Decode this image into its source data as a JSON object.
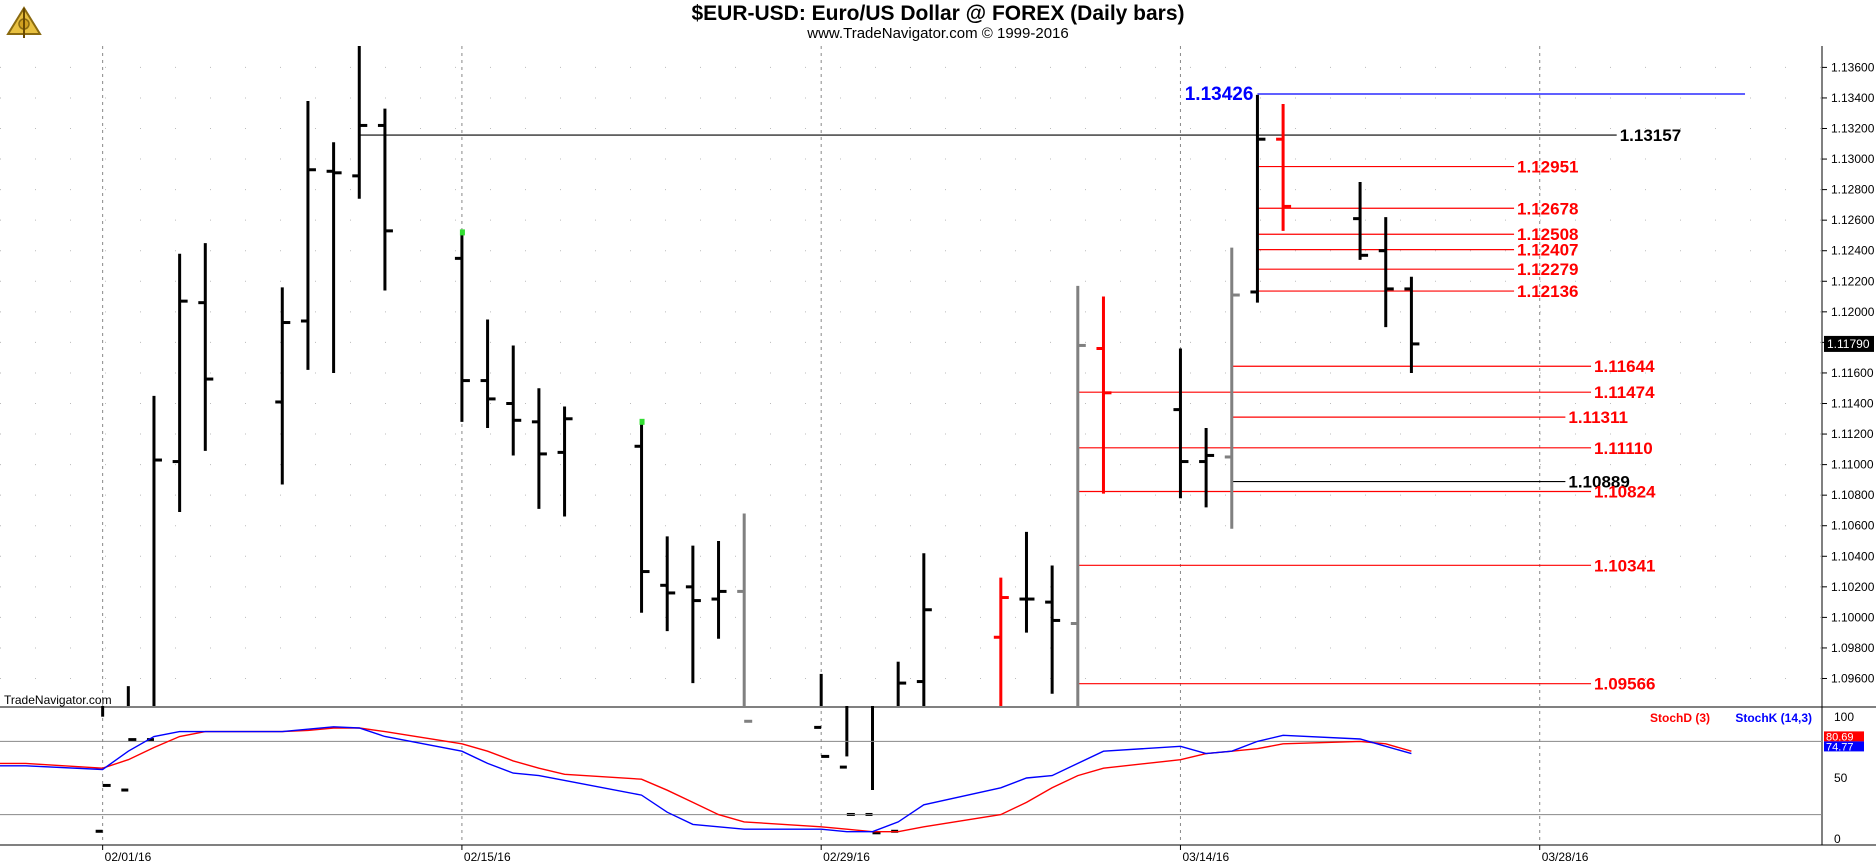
{
  "header": {
    "title": "$EUR-USD:  Euro/US Dollar @ FOREX  (Daily bars)",
    "subtitle": "www.TradeNavigator.com © 1999-2016"
  },
  "watermark": "TradeNavigator.com",
  "colors": {
    "bar_black": "#000000",
    "bar_red": "#ff0000",
    "bar_gray": "#808080",
    "bar_green_tick": "#33dd33",
    "level_red": "#ff0000",
    "level_blue": "#0000ff",
    "level_black": "#000000",
    "stoch_d": "#ff0000",
    "stoch_k": "#0000ff",
    "grid": "#888888"
  },
  "chart_data": [
    {
      "type": "ohlc",
      "y_axis": {
        "range": [
          1.0942,
          1.1374
        ],
        "ticks": [
          "1.09600",
          "1.09800",
          "1.10000",
          "1.10200",
          "1.10400",
          "1.10600",
          "1.10800",
          "1.11000",
          "1.11200",
          "1.11400",
          "1.11600",
          "1.11800",
          "1.12000",
          "1.12200",
          "1.12400",
          "1.12600",
          "1.12800",
          "1.13000",
          "1.13200",
          "1.13400",
          "1.13600"
        ],
        "current_price": "1.11790",
        "position": "right"
      },
      "x_axis": {
        "ticks": [
          "02/01/16",
          "02/15/16",
          "02/29/16",
          "03/14/16",
          "03/28/16"
        ],
        "range_days": [
          "2016-01-28",
          "2016-04-08"
        ]
      },
      "grid": true,
      "bars": [
        {
          "date": "2016-02-01",
          "open": 1.086,
          "high": 1.0935,
          "low": 1.083,
          "close": 1.089,
          "color": "black"
        },
        {
          "date": "2016-02-02",
          "open": 1.0887,
          "high": 1.0955,
          "low": 1.085,
          "close": 1.092,
          "color": "black"
        },
        {
          "date": "2016-02-03",
          "open": 1.092,
          "high": 1.1145,
          "low": 1.088,
          "close": 1.1103,
          "color": "black"
        },
        {
          "date": "2016-02-04",
          "open": 1.1102,
          "high": 1.1238,
          "low": 1.1069,
          "close": 1.1207,
          "color": "black"
        },
        {
          "date": "2016-02-05",
          "open": 1.1206,
          "high": 1.1245,
          "low": 1.1109,
          "close": 1.1156,
          "color": "black"
        },
        {
          "date": "2016-02-08",
          "open": 1.1141,
          "high": 1.1216,
          "low": 1.1087,
          "close": 1.1193,
          "color": "black"
        },
        {
          "date": "2016-02-09",
          "open": 1.1194,
          "high": 1.1338,
          "low": 1.1162,
          "close": 1.1293,
          "color": "black"
        },
        {
          "date": "2016-02-10",
          "open": 1.1292,
          "high": 1.1311,
          "low": 1.116,
          "close": 1.1291,
          "color": "black"
        },
        {
          "date": "2016-02-11",
          "open": 1.1289,
          "high": 1.1376,
          "low": 1.1274,
          "close": 1.1322,
          "color": "black"
        },
        {
          "date": "2016-02-12",
          "open": 1.1322,
          "high": 1.1333,
          "low": 1.1214,
          "close": 1.1253,
          "color": "black"
        },
        {
          "date": "2016-02-15",
          "open": 1.1235,
          "high": 1.1252,
          "low": 1.1128,
          "close": 1.1155,
          "color": "black",
          "mark": "green"
        },
        {
          "date": "2016-02-16",
          "open": 1.1155,
          "high": 1.1195,
          "low": 1.1124,
          "close": 1.1143,
          "color": "black"
        },
        {
          "date": "2016-02-17",
          "open": 1.114,
          "high": 1.1178,
          "low": 1.1106,
          "close": 1.1129,
          "color": "black"
        },
        {
          "date": "2016-02-18",
          "open": 1.1128,
          "high": 1.115,
          "low": 1.1071,
          "close": 1.1107,
          "color": "black"
        },
        {
          "date": "2016-02-19",
          "open": 1.1108,
          "high": 1.1138,
          "low": 1.1066,
          "close": 1.113,
          "color": "black"
        },
        {
          "date": "2016-02-22",
          "open": 1.1112,
          "high": 1.1128,
          "low": 1.1003,
          "close": 1.103,
          "color": "black",
          "mark": "green"
        },
        {
          "date": "2016-02-23",
          "open": 1.1021,
          "high": 1.1053,
          "low": 1.0991,
          "close": 1.1016,
          "color": "black"
        },
        {
          "date": "2016-02-24",
          "open": 1.102,
          "high": 1.1047,
          "low": 1.0957,
          "close": 1.1011,
          "color": "black"
        },
        {
          "date": "2016-02-25",
          "open": 1.1012,
          "high": 1.105,
          "low": 1.0986,
          "close": 1.1017,
          "color": "black"
        },
        {
          "date": "2016-02-26",
          "open": 1.1017,
          "high": 1.1068,
          "low": 1.091,
          "close": 1.0932,
          "color": "gray"
        },
        {
          "date": "2016-02-29",
          "open": 1.0928,
          "high": 1.0963,
          "low": 1.0895,
          "close": 1.0909,
          "color": "black"
        },
        {
          "date": "2016-03-01",
          "open": 1.0902,
          "high": 1.0909,
          "low": 1.0839,
          "close": 1.0871,
          "color": "black"
        },
        {
          "date": "2016-03-02",
          "open": 1.0871,
          "high": 1.0887,
          "low": 1.0823,
          "close": 1.0859,
          "color": "black"
        },
        {
          "date": "2016-03-03",
          "open": 1.086,
          "high": 1.0971,
          "low": 1.0849,
          "close": 1.0957,
          "color": "black"
        },
        {
          "date": "2016-03-04",
          "open": 1.0958,
          "high": 1.1042,
          "low": 1.092,
          "close": 1.1005,
          "color": "black"
        },
        {
          "date": "2016-03-07",
          "open": 1.0987,
          "high": 1.1026,
          "low": 1.094,
          "close": 1.1013,
          "color": "red"
        },
        {
          "date": "2016-03-08",
          "open": 1.1012,
          "high": 1.1056,
          "low": 1.099,
          "close": 1.1012,
          "color": "black"
        },
        {
          "date": "2016-03-09",
          "open": 1.101,
          "high": 1.1034,
          "low": 1.095,
          "close": 1.0998,
          "color": "black"
        },
        {
          "date": "2016-03-10",
          "open": 1.0996,
          "high": 1.1217,
          "low": 1.0933,
          "close": 1.1178,
          "color": "gray"
        },
        {
          "date": "2016-03-11",
          "open": 1.1176,
          "high": 1.121,
          "low": 1.1081,
          "close": 1.1147,
          "color": "red"
        },
        {
          "date": "2016-03-14",
          "open": 1.1136,
          "high": 1.1176,
          "low": 1.1078,
          "close": 1.1102,
          "color": "black"
        },
        {
          "date": "2016-03-15",
          "open": 1.1102,
          "high": 1.1124,
          "low": 1.1072,
          "close": 1.1106,
          "color": "black"
        },
        {
          "date": "2016-03-16",
          "open": 1.1105,
          "high": 1.1242,
          "low": 1.1058,
          "close": 1.1211,
          "color": "gray"
        },
        {
          "date": "2016-03-17",
          "open": 1.1213,
          "high": 1.1342,
          "low": 1.1206,
          "close": 1.1313,
          "color": "black"
        },
        {
          "date": "2016-03-18",
          "open": 1.1313,
          "high": 1.1336,
          "low": 1.1253,
          "close": 1.1269,
          "color": "red"
        },
        {
          "date": "2016-03-21",
          "open": 1.1261,
          "high": 1.1285,
          "low": 1.1234,
          "close": 1.1237,
          "color": "black"
        },
        {
          "date": "2016-03-22",
          "open": 1.124,
          "high": 1.1262,
          "low": 1.119,
          "close": 1.1215,
          "color": "black"
        },
        {
          "date": "2016-03-23",
          "open": 1.1215,
          "high": 1.1223,
          "low": 1.116,
          "close": 1.1179,
          "color": "black"
        }
      ],
      "levels": [
        {
          "value": 1.13426,
          "label": "1.13426",
          "color": "blue",
          "from": "2016-03-17",
          "to": "2016-04-05",
          "label_side": "left"
        },
        {
          "value": 1.13157,
          "label": "1.13157",
          "color": "black",
          "from": "2016-02-11",
          "to": "2016-03-31",
          "label_side": "right"
        },
        {
          "value": 1.12951,
          "label": "1.12951",
          "color": "red",
          "from": "2016-03-17",
          "to": "2016-03-27",
          "label_side": "right"
        },
        {
          "value": 1.12678,
          "label": "1.12678",
          "color": "red",
          "from": "2016-03-17",
          "to": "2016-03-27",
          "label_side": "right"
        },
        {
          "value": 1.12508,
          "label": "1.12508",
          "color": "red",
          "from": "2016-03-17",
          "to": "2016-03-27",
          "label_side": "right"
        },
        {
          "value": 1.12407,
          "label": "1.12407",
          "color": "red",
          "from": "2016-03-17",
          "to": "2016-03-27",
          "label_side": "right"
        },
        {
          "value": 1.12279,
          "label": "1.12279",
          "color": "red",
          "from": "2016-03-17",
          "to": "2016-03-27",
          "label_side": "right"
        },
        {
          "value": 1.12136,
          "label": "1.12136",
          "color": "red",
          "from": "2016-03-17",
          "to": "2016-03-27",
          "label_side": "right"
        },
        {
          "value": 1.11644,
          "label": "1.11644",
          "color": "red",
          "from": "2016-03-16",
          "to": "2016-03-30",
          "label_side": "right"
        },
        {
          "value": 1.11474,
          "label": "1.11474",
          "color": "red",
          "from": "2016-03-10",
          "to": "2016-03-30",
          "label_side": "right"
        },
        {
          "value": 1.11311,
          "label": "1.11311",
          "color": "red",
          "from": "2016-03-16",
          "to": "2016-03-29",
          "label_side": "right"
        },
        {
          "value": 1.1111,
          "label": "1.11110",
          "color": "red",
          "from": "2016-03-10",
          "to": "2016-03-30",
          "label_side": "right"
        },
        {
          "value": 1.10889,
          "label": "1.10889",
          "color": "black",
          "from": "2016-03-16",
          "to": "2016-03-29",
          "label_side": "right"
        },
        {
          "value": 1.10824,
          "label": "1.10824",
          "color": "red",
          "from": "2016-03-10",
          "to": "2016-03-30",
          "label_side": "right"
        },
        {
          "value": 1.10341,
          "label": "1.10341",
          "color": "red",
          "from": "2016-03-10",
          "to": "2016-03-30",
          "label_side": "right"
        },
        {
          "value": 1.09566,
          "label": "1.09566",
          "color": "red",
          "from": "2016-03-10",
          "to": "2016-03-30",
          "label_side": "right"
        }
      ]
    },
    {
      "type": "line",
      "y_axis": {
        "range": [
          0,
          100
        ],
        "ticks": [
          "0",
          "50",
          "100"
        ],
        "levels": [
          20,
          80
        ]
      },
      "current_values": [
        "80.69",
        "74.77"
      ],
      "series": [
        {
          "name": "StochD (3)",
          "color": "red",
          "x": [
            "2016-01-28",
            "2016-01-29",
            "2016-02-01",
            "2016-02-02",
            "2016-02-03",
            "2016-02-04",
            "2016-02-05",
            "2016-02-08",
            "2016-02-09",
            "2016-02-10",
            "2016-02-11",
            "2016-02-12",
            "2016-02-15",
            "2016-02-16",
            "2016-02-17",
            "2016-02-18",
            "2016-02-19",
            "2016-02-22",
            "2016-02-23",
            "2016-02-24",
            "2016-02-25",
            "2016-02-26",
            "2016-02-29",
            "2016-03-01",
            "2016-03-02",
            "2016-03-03",
            "2016-03-04",
            "2016-03-07",
            "2016-03-08",
            "2016-03-09",
            "2016-03-10",
            "2016-03-11",
            "2016-03-14",
            "2016-03-15",
            "2016-03-16",
            "2016-03-17",
            "2016-03-18",
            "2016-03-21",
            "2016-03-22",
            "2016-03-23"
          ],
          "values": [
            62,
            62,
            58,
            65,
            75,
            84,
            88,
            88,
            89,
            91,
            91,
            88,
            78,
            72,
            64,
            58,
            53,
            49,
            40,
            30,
            20,
            14,
            10,
            8,
            6,
            6,
            10,
            20,
            30,
            42,
            52,
            58,
            65,
            70,
            72,
            74,
            78,
            80,
            78,
            72
          ]
        },
        {
          "name": "StochK (14,3)",
          "color": "blue",
          "x": [
            "2016-01-28",
            "2016-01-29",
            "2016-02-01",
            "2016-02-02",
            "2016-02-03",
            "2016-02-04",
            "2016-02-05",
            "2016-02-08",
            "2016-02-09",
            "2016-02-10",
            "2016-02-11",
            "2016-02-12",
            "2016-02-15",
            "2016-02-16",
            "2016-02-17",
            "2016-02-18",
            "2016-02-19",
            "2016-02-22",
            "2016-02-23",
            "2016-02-24",
            "2016-02-25",
            "2016-02-26",
            "2016-02-29",
            "2016-03-01",
            "2016-03-02",
            "2016-03-03",
            "2016-03-04",
            "2016-03-07",
            "2016-03-08",
            "2016-03-09",
            "2016-03-10",
            "2016-03-11",
            "2016-03-14",
            "2016-03-15",
            "2016-03-16",
            "2016-03-17",
            "2016-03-18",
            "2016-03-21",
            "2016-03-22",
            "2016-03-23"
          ],
          "values": [
            60,
            60,
            57,
            72,
            84,
            88,
            88,
            88,
            90,
            92,
            91,
            84,
            72,
            62,
            54,
            52,
            48,
            36,
            22,
            12,
            10,
            8,
            8,
            6,
            6,
            14,
            28,
            42,
            50,
            52,
            62,
            72,
            76,
            70,
            72,
            80,
            85,
            82,
            76,
            70
          ]
        }
      ]
    }
  ]
}
